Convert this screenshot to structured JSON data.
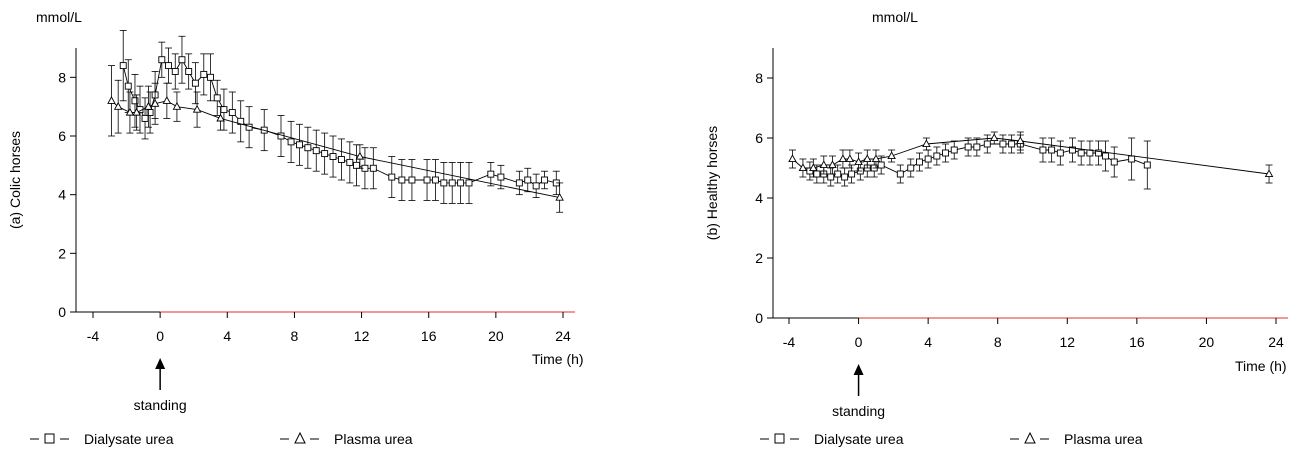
{
  "chart_data": [
    {
      "type": "line",
      "panel_label": "(a) Colic horses",
      "unit": "mmol/L",
      "xlabel": "Time (h)",
      "ylabel": "(a) Colic horses",
      "xlim": [
        -4,
        24
      ],
      "ylim": [
        0,
        9
      ],
      "xticks": [
        "-4",
        "0",
        "4",
        "8",
        "12",
        "16",
        "20",
        "24"
      ],
      "yticks": [
        "0",
        "2",
        "4",
        "6",
        "8"
      ],
      "annotation": {
        "text": "standing",
        "x": 0
      },
      "legend": {
        "placement": "bottom",
        "items": [
          "Dialysate urea",
          "Plasma urea"
        ]
      },
      "series": [
        {
          "name": "Dialysate urea",
          "marker": "square",
          "points": [
            [
              -2.2,
              8.4,
              1.2
            ],
            [
              -1.9,
              7.7,
              0.9
            ],
            [
              -1.5,
              7.2,
              0.9
            ],
            [
              -1.2,
              6.9,
              0.8
            ],
            [
              -0.9,
              6.6,
              0.7
            ],
            [
              -0.6,
              6.8,
              0.7
            ],
            [
              -0.3,
              7.4,
              0.8
            ],
            [
              0.1,
              8.6,
              0.6
            ],
            [
              0.5,
              8.4,
              0.6
            ],
            [
              0.9,
              8.2,
              0.6
            ],
            [
              1.3,
              8.6,
              0.8
            ],
            [
              1.7,
              8.2,
              0.6
            ],
            [
              2.1,
              7.8,
              0.7
            ],
            [
              2.6,
              8.1,
              0.7
            ],
            [
              3.0,
              8.0,
              0.8
            ],
            [
              3.4,
              7.3,
              0.6
            ],
            [
              3.8,
              6.9,
              0.7
            ],
            [
              4.3,
              6.8,
              0.7
            ],
            [
              4.8,
              6.5,
              0.7
            ],
            [
              5.3,
              6.3,
              0.7
            ],
            [
              6.2,
              6.2,
              0.7
            ],
            [
              7.2,
              6.0,
              0.7
            ],
            [
              7.8,
              5.8,
              0.7
            ],
            [
              8.3,
              5.7,
              0.7
            ],
            [
              8.8,
              5.6,
              0.7
            ],
            [
              9.3,
              5.5,
              0.7
            ],
            [
              9.8,
              5.4,
              0.7
            ],
            [
              10.3,
              5.3,
              0.7
            ],
            [
              10.8,
              5.2,
              0.7
            ],
            [
              11.3,
              5.1,
              0.7
            ],
            [
              11.7,
              5.0,
              0.7
            ],
            [
              12.2,
              4.9,
              0.7
            ],
            [
              12.7,
              4.9,
              0.7
            ],
            [
              13.8,
              4.6,
              0.7
            ],
            [
              14.4,
              4.5,
              0.7
            ],
            [
              15.0,
              4.5,
              0.7
            ],
            [
              15.9,
              4.5,
              0.7
            ],
            [
              16.4,
              4.5,
              0.7
            ],
            [
              16.9,
              4.4,
              0.7
            ],
            [
              17.4,
              4.4,
              0.7
            ],
            [
              17.9,
              4.4,
              0.7
            ],
            [
              18.4,
              4.4,
              0.7
            ],
            [
              19.7,
              4.7,
              0.4
            ],
            [
              20.3,
              4.6,
              0.4
            ],
            [
              21.4,
              4.4,
              0.4
            ],
            [
              21.9,
              4.5,
              0.4
            ],
            [
              22.4,
              4.3,
              0.4
            ],
            [
              22.9,
              4.5,
              0.3
            ],
            [
              23.6,
              4.4,
              0.4
            ]
          ]
        },
        {
          "name": "Plasma urea",
          "marker": "triangle",
          "points": [
            [
              -2.9,
              7.2,
              1.2
            ],
            [
              -2.5,
              7.0,
              0.9
            ],
            [
              -1.8,
              6.8,
              0.7
            ],
            [
              -1.4,
              6.8,
              0.6
            ],
            [
              -0.7,
              7.0,
              0.7
            ],
            [
              -0.3,
              7.1,
              0.7
            ],
            [
              0.4,
              7.2,
              0.6
            ],
            [
              1.0,
              7.0,
              0.5
            ],
            [
              2.2,
              6.9,
              0.6
            ],
            [
              3.6,
              6.6,
              0.4
            ],
            [
              11.9,
              5.3,
              0.4
            ],
            [
              23.8,
              3.9,
              0.5
            ]
          ]
        }
      ]
    },
    {
      "type": "line",
      "panel_label": "(b) Healthy horses",
      "unit": "mmol/L",
      "xlabel": "Time (h)",
      "ylabel": "(b) Healthy horses",
      "xlim": [
        -4,
        24
      ],
      "ylim": [
        0,
        9
      ],
      "xticks": [
        "-4",
        "0",
        "4",
        "8",
        "12",
        "16",
        "20",
        "24"
      ],
      "yticks": [
        "0",
        "2",
        "4",
        "6",
        "8"
      ],
      "annotation": {
        "text": "standing",
        "x": 0
      },
      "legend": {
        "placement": "bottom",
        "items": [
          "Dialysate urea",
          "Plasma urea"
        ]
      },
      "series": [
        {
          "name": "Dialysate urea",
          "marker": "square",
          "points": [
            [
              -2.8,
              4.9,
              0.3
            ],
            [
              -2.4,
              4.8,
              0.3
            ],
            [
              -2.0,
              4.8,
              0.3
            ],
            [
              -1.6,
              4.7,
              0.3
            ],
            [
              -1.2,
              4.8,
              0.3
            ],
            [
              -0.8,
              4.7,
              0.3
            ],
            [
              -0.4,
              4.8,
              0.3
            ],
            [
              0.1,
              4.9,
              0.3
            ],
            [
              0.5,
              5.0,
              0.3
            ],
            [
              0.9,
              5.0,
              0.3
            ],
            [
              1.3,
              5.1,
              0.3
            ],
            [
              2.4,
              4.8,
              0.3
            ],
            [
              3.0,
              5.0,
              0.3
            ],
            [
              3.5,
              5.2,
              0.3
            ],
            [
              4.0,
              5.3,
              0.3
            ],
            [
              4.5,
              5.4,
              0.3
            ],
            [
              5.0,
              5.5,
              0.3
            ],
            [
              5.5,
              5.6,
              0.3
            ],
            [
              6.3,
              5.7,
              0.3
            ],
            [
              6.8,
              5.7,
              0.3
            ],
            [
              7.4,
              5.8,
              0.3
            ],
            [
              8.3,
              5.8,
              0.3
            ],
            [
              8.8,
              5.8,
              0.3
            ],
            [
              9.3,
              5.8,
              0.3
            ],
            [
              10.6,
              5.6,
              0.4
            ],
            [
              11.1,
              5.6,
              0.4
            ],
            [
              11.6,
              5.5,
              0.4
            ],
            [
              12.3,
              5.6,
              0.4
            ],
            [
              12.8,
              5.5,
              0.4
            ],
            [
              13.3,
              5.5,
              0.4
            ],
            [
              13.8,
              5.5,
              0.4
            ],
            [
              14.2,
              5.4,
              0.5
            ],
            [
              14.7,
              5.2,
              0.5
            ],
            [
              15.7,
              5.3,
              0.7
            ],
            [
              16.6,
              5.1,
              0.8
            ]
          ]
        },
        {
          "name": "Plasma urea",
          "marker": "triangle",
          "points": [
            [
              -3.8,
              5.3,
              0.3
            ],
            [
              -3.2,
              5.0,
              0.3
            ],
            [
              -2.6,
              5.0,
              0.3
            ],
            [
              -2.0,
              5.1,
              0.3
            ],
            [
              -1.5,
              5.1,
              0.3
            ],
            [
              -0.9,
              5.3,
              0.3
            ],
            [
              -0.5,
              5.3,
              0.3
            ],
            [
              0.0,
              5.2,
              0.3
            ],
            [
              0.5,
              5.3,
              0.3
            ],
            [
              1.0,
              5.3,
              0.3
            ],
            [
              1.9,
              5.4,
              0.2
            ],
            [
              3.9,
              5.8,
              0.2
            ],
            [
              7.8,
              6.0,
              0.2
            ],
            [
              9.3,
              5.9,
              0.3
            ],
            [
              23.6,
              4.8,
              0.3
            ]
          ]
        }
      ]
    }
  ]
}
